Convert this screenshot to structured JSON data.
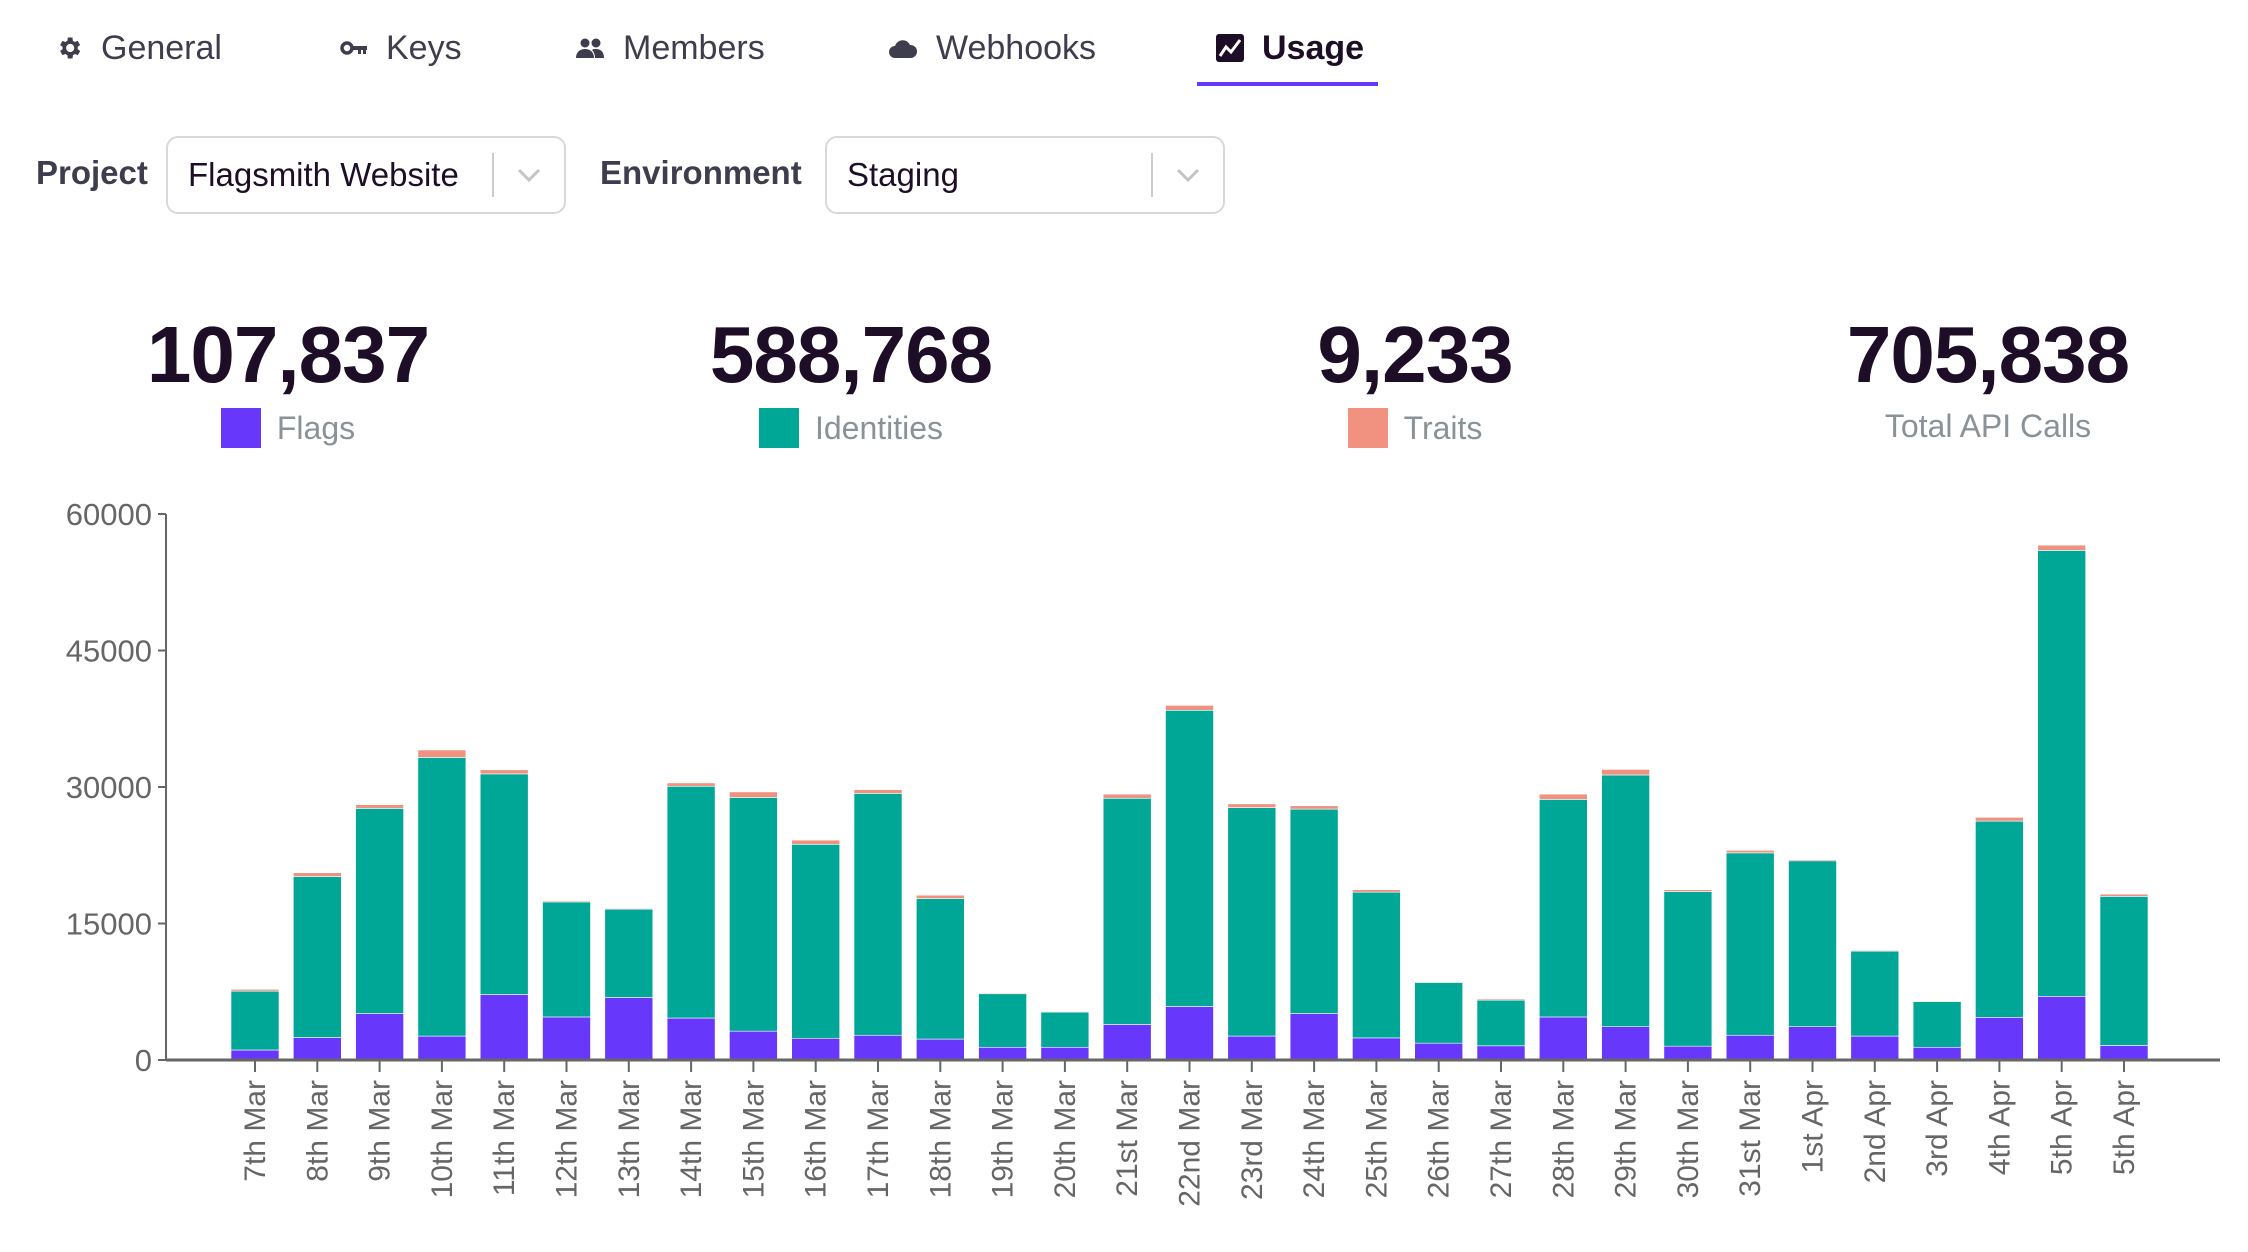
{
  "tabs": [
    {
      "label": "General",
      "icon": "gear-icon",
      "active": false
    },
    {
      "label": "Keys",
      "icon": "key-icon",
      "active": false
    },
    {
      "label": "Members",
      "icon": "people-icon",
      "active": false
    },
    {
      "label": "Webhooks",
      "icon": "cloud-icon",
      "active": false
    },
    {
      "label": "Usage",
      "icon": "chart-icon",
      "active": true
    }
  ],
  "filters": {
    "project_label": "Project",
    "project_value": "Flagsmith Website",
    "environment_label": "Environment",
    "environment_value": "Staging"
  },
  "stats": [
    {
      "value": "107,837",
      "label": "Flags",
      "color": "#6837fc"
    },
    {
      "value": "588,768",
      "label": "Identities",
      "color": "#00a696"
    },
    {
      "value": "9,233",
      "label": "Traits",
      "color": "#f19180"
    },
    {
      "value": "705,838",
      "label": "Total API Calls"
    }
  ],
  "chart_data": {
    "type": "bar",
    "stacked": true,
    "ylim": [
      0,
      60000
    ],
    "yticks": [
      0,
      15000,
      30000,
      45000,
      60000
    ],
    "categories": [
      "7th Mar",
      "8th Mar",
      "9th Mar",
      "10th Mar",
      "11th Mar",
      "12th Mar",
      "13th Mar",
      "14th Mar",
      "15th Mar",
      "16th Mar",
      "17th Mar",
      "18th Mar",
      "19th Mar",
      "20th Mar",
      "21st Mar",
      "22nd Mar",
      "23rd Mar",
      "24th Mar",
      "25th Mar",
      "26th Mar",
      "27th Mar",
      "28th Mar",
      "29th Mar",
      "30th Mar",
      "31st Mar",
      "1st Apr",
      "2nd Apr",
      "3rd Apr",
      "4th Apr",
      "5th Apr",
      "5th Apr"
    ],
    "series": [
      {
        "name": "Flags",
        "color": "#6837fc",
        "values": [
          1100,
          2470,
          5100,
          2630,
          7200,
          4730,
          6870,
          4610,
          3170,
          2390,
          2720,
          2300,
          1400,
          1400,
          3910,
          5880,
          2630,
          5100,
          2430,
          1850,
          1560,
          4730,
          3660,
          1520,
          2720,
          3660,
          2630,
          1400,
          4690,
          7000,
          1600
        ]
      },
      {
        "name": "Identities",
        "color": "#00a696",
        "values": [
          6470,
          17690,
          22550,
          30620,
          24240,
          12640,
          9710,
          25470,
          25680,
          21310,
          26580,
          15440,
          5880,
          3870,
          24850,
          32550,
          25110,
          22470,
          16010,
          6670,
          5020,
          23910,
          27660,
          17000,
          20040,
          18230,
          9340,
          5020,
          21560,
          49000,
          16380
        ]
      },
      {
        "name": "Traits",
        "color": "#f19180",
        "values": [
          200,
          420,
          410,
          820,
          450,
          120,
          90,
          370,
          610,
          460,
          410,
          370,
          90,
          80,
          460,
          540,
          410,
          370,
          280,
          80,
          130,
          580,
          610,
          200,
          280,
          130,
          90,
          80,
          420,
          580,
          250
        ]
      }
    ]
  }
}
